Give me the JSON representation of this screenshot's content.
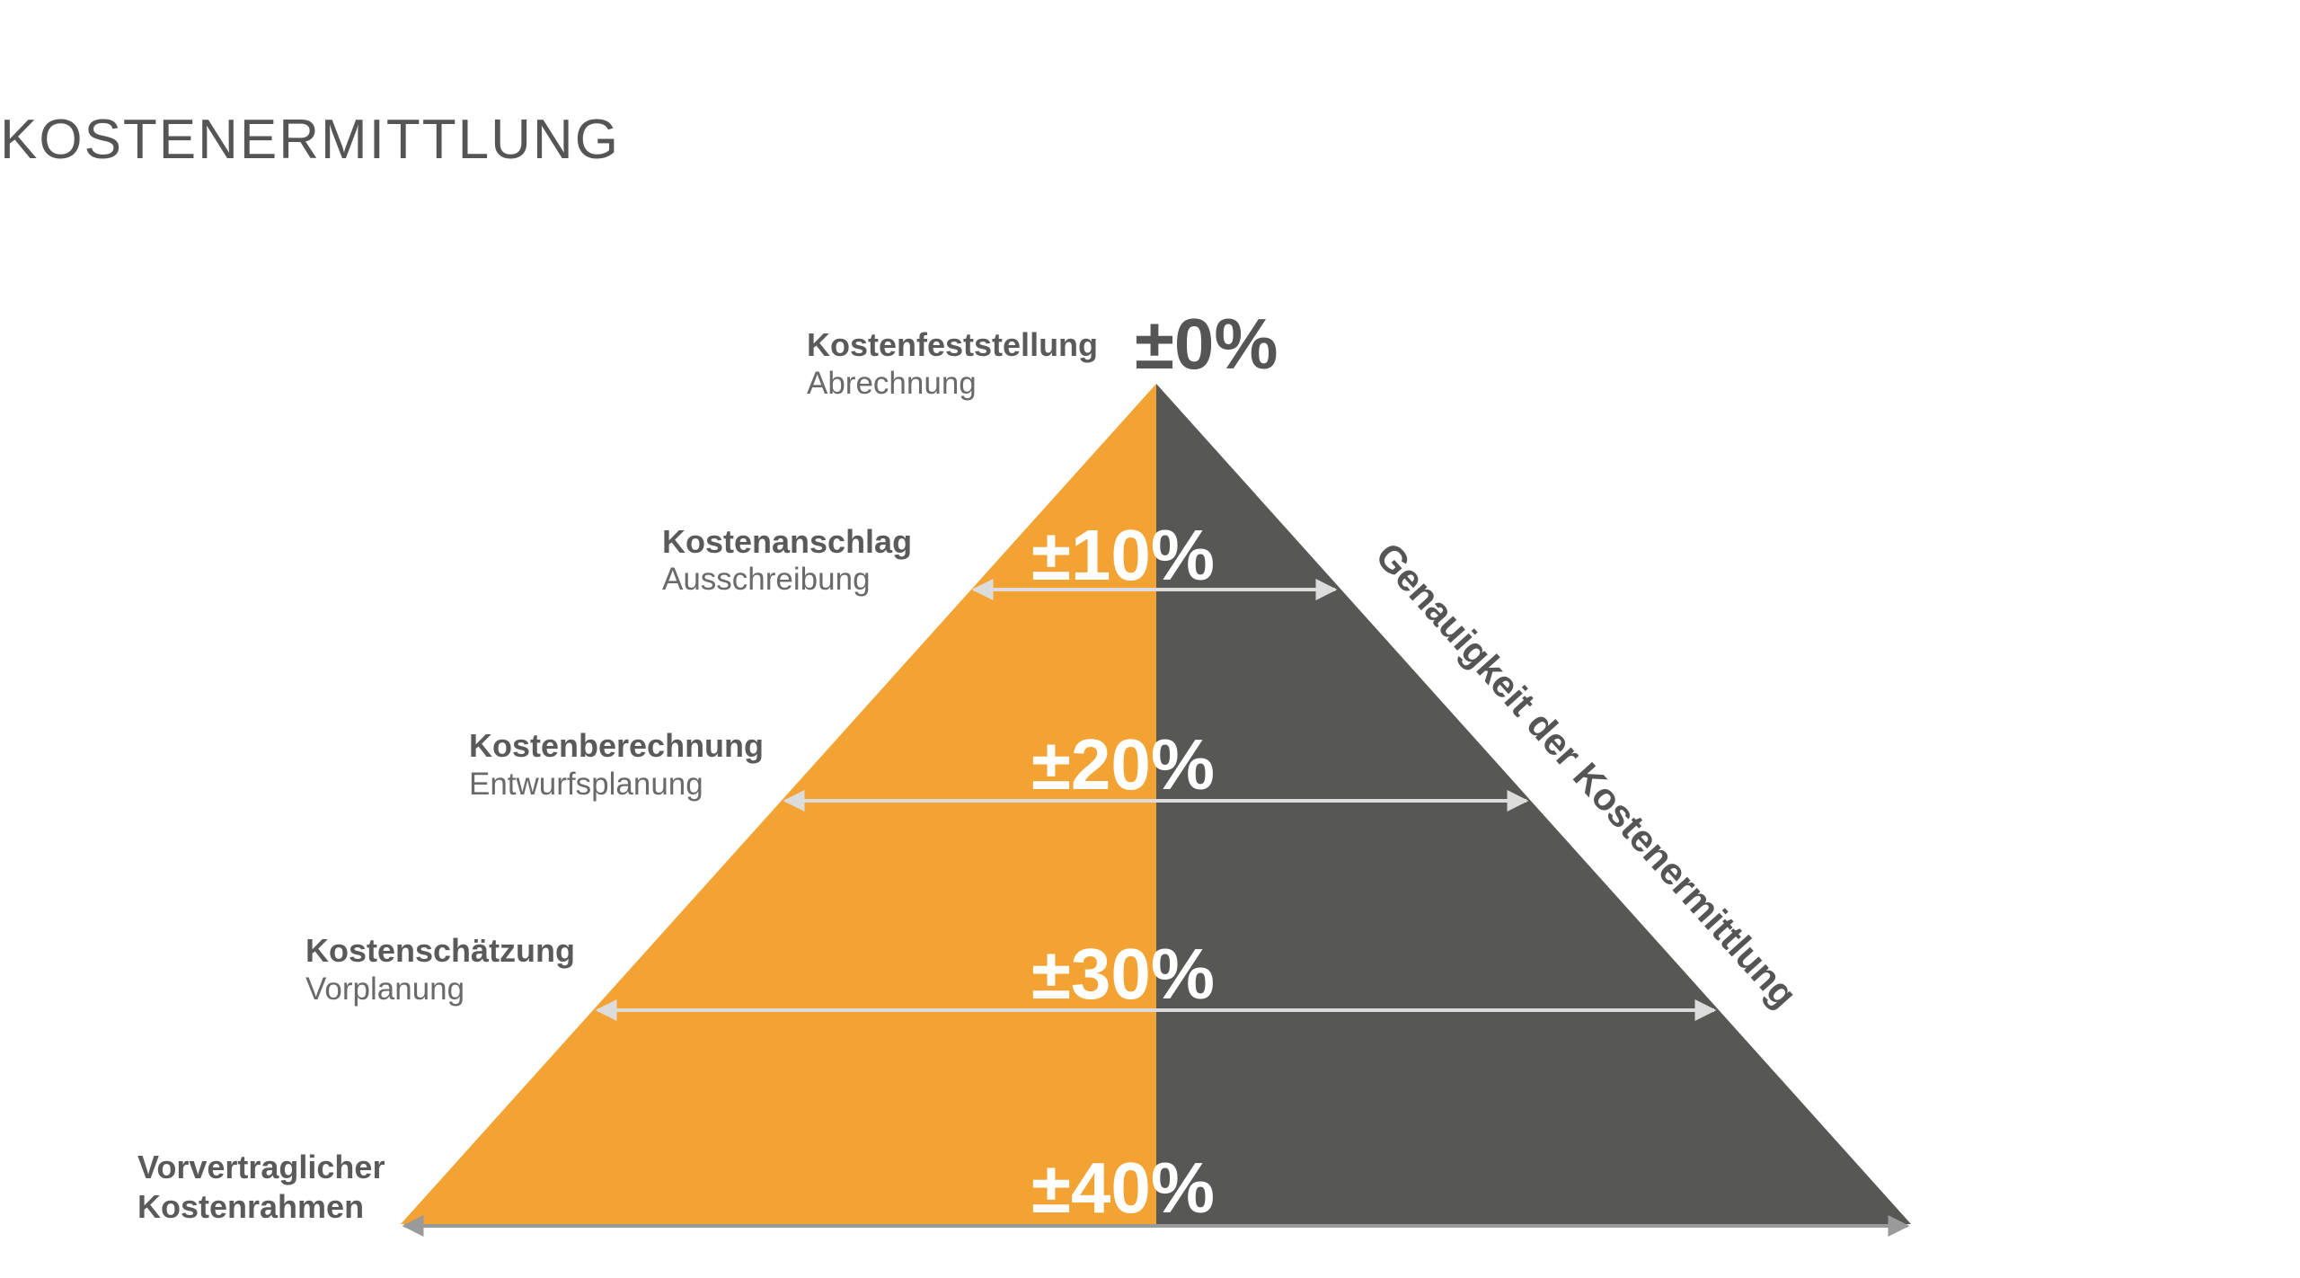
{
  "header": {
    "title": "KOSTENERMITTLUNG"
  },
  "pyramid": {
    "side_label": "Genauigkeit der Kostenermittlung",
    "levels": [
      {
        "name": [
          "Kostenfeststellung"
        ],
        "phase": "Abrechnung",
        "accuracy": "±0%"
      },
      {
        "name": [
          "Kostenanschlag"
        ],
        "phase": "Ausschreibung",
        "accuracy": "±10%"
      },
      {
        "name": [
          "Kostenberechnung"
        ],
        "phase": "Entwurfsplanung",
        "accuracy": "±20%"
      },
      {
        "name": [
          "Kostenschätzung"
        ],
        "phase": "Vorplanung",
        "accuracy": "±30%"
      },
      {
        "name": [
          "Vorvertraglicher",
          "Kostenrahmen"
        ],
        "accuracy": "±40%"
      }
    ]
  }
}
